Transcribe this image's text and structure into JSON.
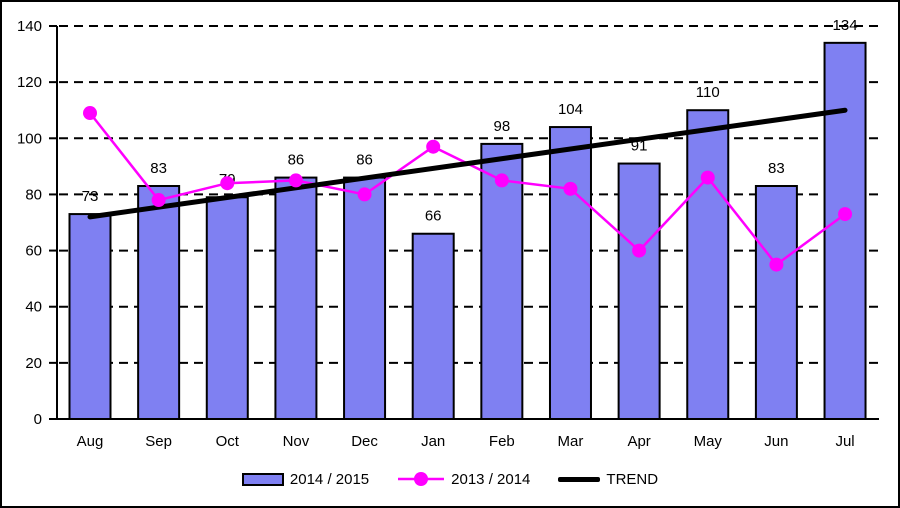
{
  "chart_data": {
    "type": "bar",
    "subtype": "bar-with-line-and-trend",
    "categories": [
      "Aug",
      "Sep",
      "Oct",
      "Nov",
      "Dec",
      "Jan",
      "Feb",
      "Mar",
      "Apr",
      "May",
      "Jun",
      "Jul"
    ],
    "series": [
      {
        "name": "2014 / 2015",
        "type": "bar",
        "color": "#7F80F2",
        "border_color": "#000000",
        "values": [
          73,
          83,
          79,
          86,
          86,
          66,
          98,
          104,
          91,
          110,
          83,
          134
        ],
        "data_labels_shown": true
      },
      {
        "name": "2013 / 2014",
        "type": "line",
        "color": "#FF00FF",
        "marker": "circle",
        "values": [
          109,
          78,
          84,
          85,
          80,
          97,
          85,
          82,
          60,
          86,
          55,
          73
        ]
      },
      {
        "name": "TREND",
        "type": "trendline",
        "color": "#000000",
        "start_value": 72,
        "end_value": 110
      }
    ],
    "title": "",
    "xlabel": "",
    "ylabel": "",
    "ylim": [
      0,
      140
    ],
    "ytick_step": 20,
    "yticks": [
      0,
      20,
      40,
      60,
      80,
      100,
      120,
      140
    ],
    "grid": "horizontal-dashed",
    "grid_color": "#000000",
    "axis_color": "#000000",
    "background": "#FFFFFF",
    "legend_position": "bottom"
  }
}
